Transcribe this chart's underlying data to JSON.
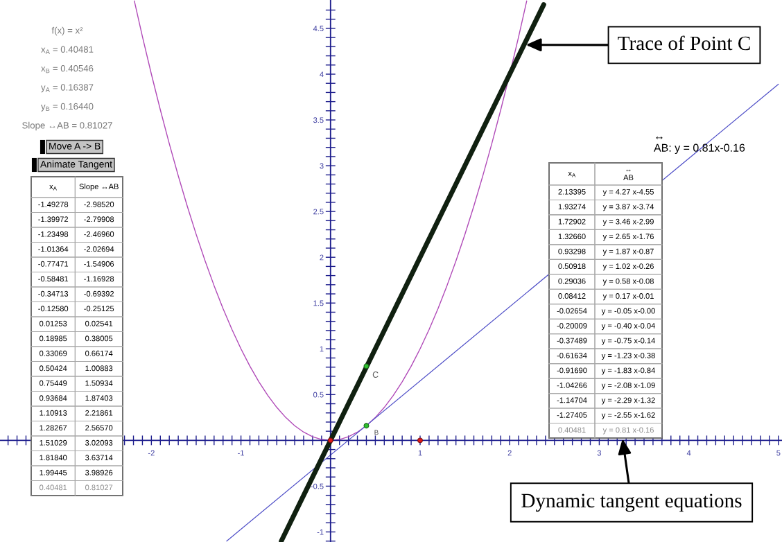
{
  "chart_data": [
    {
      "type": "line",
      "xlim": [
        -3.69,
        5.04
      ],
      "ylim": [
        -1.11,
        4.81
      ],
      "xticks": [
        {
          "value": -3.6,
          "label": null
        },
        {
          "value": -3.5,
          "label": null
        },
        {
          "value": -3.4,
          "label": null
        },
        {
          "value": -2.3,
          "label": null
        },
        {
          "value": -2.2,
          "label": null
        },
        {
          "value": -2.1,
          "label": null
        },
        -2,
        {
          "value": -1.9,
          "label": null
        },
        {
          "value": -1.8,
          "label": null
        },
        {
          "value": -1.7,
          "label": null
        },
        {
          "value": -1.6,
          "label": null
        },
        {
          "value": -1.5,
          "label": null
        },
        {
          "value": -1.4,
          "label": null
        },
        {
          "value": -1.3,
          "label": null
        },
        {
          "value": -1.2,
          "label": null
        },
        {
          "value": -1.1,
          "label": null
        },
        -1,
        {
          "value": -0.9,
          "label": null
        },
        {
          "value": -0.8,
          "label": null
        },
        {
          "value": -0.7,
          "label": null
        },
        {
          "value": -0.6,
          "label": null
        },
        {
          "value": -0.5,
          "label": null
        },
        {
          "value": -0.4,
          "label": null
        },
        {
          "value": -0.3,
          "label": null
        },
        {
          "value": -0.2,
          "label": null
        },
        {
          "value": -0.1,
          "label": null
        },
        {
          "value": 0.1,
          "label": null
        },
        {
          "value": 0.2,
          "label": null
        },
        {
          "value": 0.3,
          "label": null
        },
        {
          "value": 0.4,
          "label": null
        },
        {
          "value": 0.5,
          "label": null
        },
        {
          "value": 0.6,
          "label": null
        },
        {
          "value": 0.7,
          "label": null
        },
        {
          "value": 0.8,
          "label": null
        },
        {
          "value": 0.9,
          "label": null
        },
        1,
        {
          "value": 1.1,
          "label": null
        },
        {
          "value": 1.2,
          "label": null
        },
        {
          "value": 1.3,
          "label": null
        },
        {
          "value": 1.4,
          "label": null
        },
        {
          "value": 1.5,
          "label": null
        },
        {
          "value": 1.6,
          "label": null
        },
        {
          "value": 1.7,
          "label": null
        },
        {
          "value": 1.8,
          "label": null
        },
        {
          "value": 1.9,
          "label": null
        },
        2,
        {
          "value": 2.1,
          "label": null
        },
        {
          "value": 2.2,
          "label": null
        },
        {
          "value": 2.3,
          "label": null
        },
        {
          "value": 2.4,
          "label": null
        },
        {
          "value": 2.5,
          "label": null
        },
        {
          "value": 2.6,
          "label": null
        },
        {
          "value": 2.7,
          "label": null
        },
        {
          "value": 2.8,
          "label": null
        },
        {
          "value": 2.9,
          "label": null
        },
        3,
        {
          "value": 3.1,
          "label": null
        },
        {
          "value": 3.2,
          "label": null
        },
        {
          "value": 3.3,
          "label": null
        },
        {
          "value": 3.4,
          "label": null
        },
        {
          "value": 3.5,
          "label": null
        },
        {
          "value": 3.6,
          "label": null
        },
        {
          "value": 3.7,
          "label": null
        },
        {
          "value": 3.8,
          "label": null
        },
        {
          "value": 3.9,
          "label": null
        },
        4,
        {
          "value": 4.1,
          "label": null
        },
        {
          "value": 4.2,
          "label": null
        },
        {
          "value": 4.3,
          "label": null
        },
        {
          "value": 4.4,
          "label": null
        },
        {
          "value": 4.5,
          "label": null
        },
        {
          "value": 4.6,
          "label": null
        },
        {
          "value": 4.7,
          "label": null
        },
        {
          "value": 4.8,
          "label": null
        },
        {
          "value": 4.9,
          "label": null
        },
        5
      ],
      "yticks": [
        {
          "value": -1.1,
          "label": null
        },
        -1,
        {
          "value": -0.9,
          "label": null
        },
        {
          "value": -0.8,
          "label": null
        },
        {
          "value": -0.7,
          "label": null
        },
        {
          "value": -0.6,
          "label": null
        },
        -0.5,
        {
          "value": -0.4,
          "label": null
        },
        {
          "value": -0.3,
          "label": null
        },
        {
          "value": -0.2,
          "label": null
        },
        {
          "value": -0.1,
          "label": null
        },
        {
          "value": 0.1,
          "label": null
        },
        {
          "value": 0.2,
          "label": null
        },
        {
          "value": 0.3,
          "label": null
        },
        {
          "value": 0.4,
          "label": null
        },
        0.5,
        {
          "value": 0.6,
          "label": null
        },
        {
          "value": 0.7,
          "label": null
        },
        {
          "value": 0.8,
          "label": null
        },
        {
          "value": 0.9,
          "label": null
        },
        1,
        {
          "value": 1.1,
          "label": null
        },
        {
          "value": 1.2,
          "label": null
        },
        {
          "value": 1.3,
          "label": null
        },
        {
          "value": 1.4,
          "label": null
        },
        1.5,
        {
          "value": 1.6,
          "label": null
        },
        {
          "value": 1.7,
          "label": null
        },
        {
          "value": 1.8,
          "label": null
        },
        {
          "value": 1.9,
          "label": null
        },
        2,
        {
          "value": 2.1,
          "label": null
        },
        {
          "value": 2.2,
          "label": null
        },
        {
          "value": 2.3,
          "label": null
        },
        {
          "value": 2.4,
          "label": null
        },
        2.5,
        {
          "value": 2.6,
          "label": null
        },
        {
          "value": 2.7,
          "label": null
        },
        {
          "value": 2.8,
          "label": null
        },
        {
          "value": 2.9,
          "label": null
        },
        3,
        {
          "value": 3.1,
          "label": null
        },
        {
          "value": 3.2,
          "label": null
        },
        {
          "value": 3.3,
          "label": null
        },
        {
          "value": 3.4,
          "label": null
        },
        3.5,
        {
          "value": 3.6,
          "label": null
        },
        {
          "value": 3.7,
          "label": null
        },
        {
          "value": 3.8,
          "label": null
        },
        {
          "value": 3.9,
          "label": null
        },
        4,
        {
          "value": 4.1,
          "label": null
        },
        {
          "value": 4.2,
          "label": null
        },
        {
          "value": 4.3,
          "label": null
        },
        {
          "value": 4.4,
          "label": null
        },
        4.5,
        {
          "value": 4.6,
          "label": null
        },
        {
          "value": 4.7,
          "label": null
        }
      ],
      "series": [
        {
          "type": "line",
          "color": "#b04ab8",
          "x": [
            -2.19,
            -2.1,
            -2,
            -1.9,
            -1.8,
            -1.7,
            -1.6,
            -1.5,
            -1.4,
            -1.3,
            -1.2,
            -1.1,
            -1,
            -0.9,
            -0.8,
            -0.7,
            -0.6,
            -0.5,
            -0.4,
            -0.3,
            -0.2,
            -0.1,
            0,
            0.1,
            0.2,
            0.3,
            0.4,
            0.5,
            0.6,
            0.7,
            0.8,
            0.9,
            1,
            1.1,
            1.2,
            1.3,
            1.4,
            1.5,
            1.6,
            1.7,
            1.8,
            1.9,
            2,
            2.1,
            2.19
          ],
          "values": [
            4.8,
            4.41,
            4,
            3.61,
            3.24,
            2.89,
            2.56,
            2.25,
            1.96,
            1.69,
            1.44,
            1.21,
            1,
            0.81,
            0.64,
            0.49,
            0.36,
            0.25,
            0.16,
            0.09,
            0.04,
            0.01,
            0,
            0.01,
            0.04,
            0.09,
            0.16,
            0.25,
            0.36,
            0.49,
            0.64,
            0.81,
            1,
            1.21,
            1.44,
            1.69,
            1.96,
            2.25,
            2.56,
            2.89,
            3.24,
            3.61,
            4,
            4.41,
            4.8
          ]
        },
        {
          "type": "line",
          "color": "#102010",
          "x": [
            -0.55,
            0,
            2.38
          ],
          "values": [
            -1.1,
            0,
            4.76
          ]
        },
        {
          "type": "line",
          "color": "#5050c8",
          "x": [
            -1.16,
            5.0
          ],
          "values": [
            -1.1,
            3.89
          ]
        },
        {
          "type": "scatter",
          "marker": "circle",
          "color": "#e01818",
          "x": [
            0,
            1
          ],
          "values": [
            0,
            0
          ]
        },
        {
          "type": "scatter",
          "marker": "circle",
          "color": "#30c030",
          "x": [
            0.4,
            0.4
          ],
          "values": [
            0.16,
            0.81
          ]
        }
      ],
      "annotations": [
        {
          "text": "C",
          "x": 0.4,
          "y": 0.81
        },
        {
          "text": "B",
          "x": 0.41,
          "y": 0.16
        },
        {
          "text": "Trace of Point C",
          "x": 2.18,
          "y": 4.32
        },
        "↔\nAB: y = 0.81x-0.16",
        "Dynamic tangent equations"
      ]
    },
    {
      "type": "other",
      "annotations": [
        "f(x) = x²",
        "x$_{A}$ = 0.40481",
        "x$_{B}$ = 0.40546",
        "y$_{A}$ = 0.16387",
        "y$_{B}$ = 0.16440",
        "Slope ↔AB = 0.81027"
      ]
    },
    {
      "type": "other",
      "annotations": [
        "Move A -> B",
        "Animate Tangent"
      ]
    },
    {
      "type": "other",
      "categories": [
        "x$_{A}$",
        "Slope ↔AB"
      ],
      "annotations": [
        "-1.49278",
        "-2.98520",
        "-1.39972",
        "-2.79908",
        "-1.23498",
        "-2.46960",
        "-1.01364",
        "-2.02694",
        "-0.77471",
        "-1.54906",
        "-0.58481",
        "-1.16928",
        "-0.34713",
        "-0.69392",
        "-0.12580",
        "-0.25125",
        "0.01253",
        "0.02541",
        "0.18985",
        "0.38005",
        "0.33069",
        "0.66174",
        "0.50424",
        "1.00883",
        "0.75449",
        "1.50934",
        "0.93684",
        "1.87403",
        "1.10913",
        "2.21861",
        "1.28267",
        "2.56570",
        "1.51029",
        "3.02093",
        "1.81840",
        "3.63714",
        "1.99445",
        "3.98926",
        "0.40481",
        "0.81027"
      ]
    },
    {
      "type": "other",
      "categories": [
        "x$_{A}$",
        "↔\nAB"
      ],
      "annotations": [
        "2.13395",
        "y = 4.27 x-4.55",
        "1.93274",
        "y = 3.87 x-3.74",
        "1.72902",
        "y = 3.46 x-2.99",
        "1.32660",
        "y = 2.65 x-1.76",
        "0.93298",
        "y = 1.87 x-0.87",
        "0.50918",
        "y = 1.02 x-0.26",
        "0.29036",
        "y = 0.58 x-0.08",
        "0.08412",
        "y = 0.17 x-0.01",
        "-0.02654",
        "y = -0.05 x-0.00",
        "-0.20009",
        "y = -0.40 x-0.04",
        "-0.37489",
        "y = -0.75 x-0.14",
        "-0.61634",
        "y = -1.23 x-0.38",
        "-0.91690",
        "y = -1.83 x-0.84",
        "-1.04266",
        "y = -2.08 x-1.09",
        "-1.14704",
        "y = -2.29 x-1.32",
        "-1.27405",
        "y = -2.55 x-1.62",
        "0.40481",
        "y = 0.81 x-0.16"
      ]
    }
  ]
}
